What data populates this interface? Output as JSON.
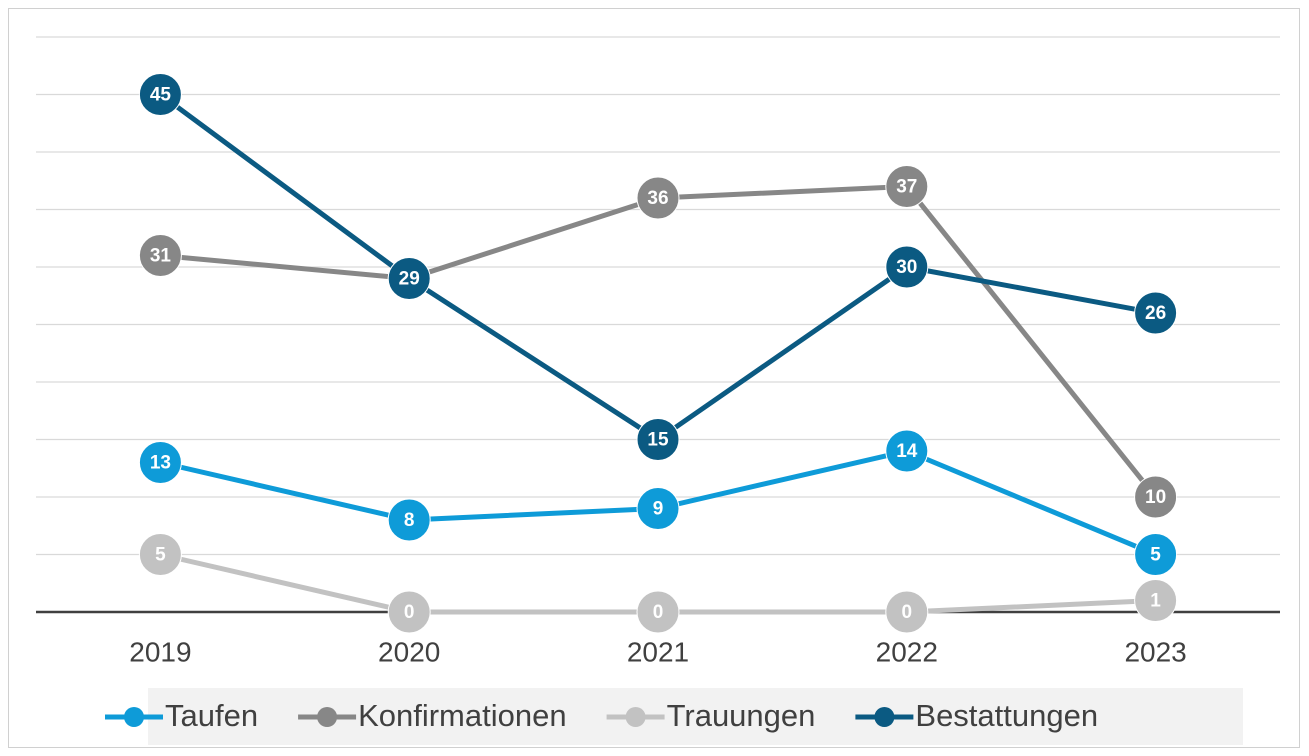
{
  "chart_data": {
    "type": "line",
    "categories": [
      "2019",
      "2020",
      "2021",
      "2022",
      "2023"
    ],
    "series": [
      {
        "name": "Taufen",
        "color": "#0e9bd8",
        "values": [
          13,
          8,
          9,
          14,
          5
        ]
      },
      {
        "name": "Konfirmationen",
        "color": "#878787",
        "values": [
          31,
          29,
          36,
          37,
          10
        ]
      },
      {
        "name": "Trauungen",
        "color": "#c2c2c2",
        "values": [
          5,
          0,
          0,
          0,
          1
        ]
      },
      {
        "name": "Bestattungen",
        "color": "#0b5a82",
        "values": [
          45,
          29,
          15,
          30,
          26
        ]
      }
    ],
    "ylim": [
      0,
      50
    ],
    "yticks": [
      0,
      5,
      10,
      15,
      20,
      25,
      30,
      35,
      40,
      45,
      50
    ],
    "grid": true,
    "legend": "bottom"
  }
}
